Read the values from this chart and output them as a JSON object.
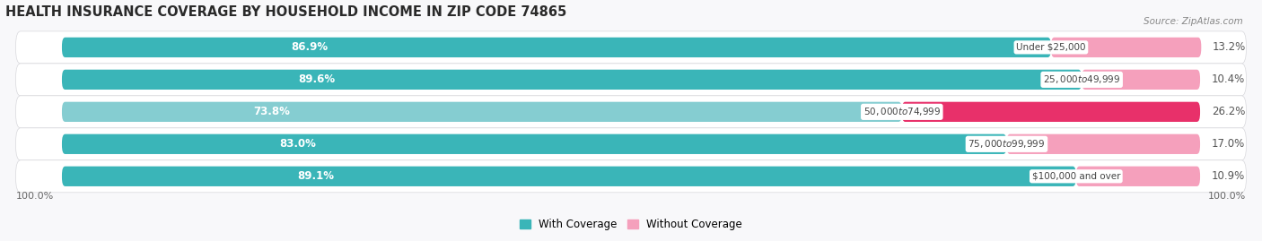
{
  "title": "HEALTH INSURANCE COVERAGE BY HOUSEHOLD INCOME IN ZIP CODE 74865",
  "source": "Source: ZipAtlas.com",
  "categories": [
    "Under $25,000",
    "$25,000 to $49,999",
    "$50,000 to $74,999",
    "$75,000 to $99,999",
    "$100,000 and over"
  ],
  "with_coverage": [
    86.9,
    89.6,
    73.8,
    83.0,
    89.1
  ],
  "without_coverage": [
    13.2,
    10.4,
    26.2,
    17.0,
    10.9
  ],
  "colors_coverage": [
    "#3ab5b8",
    "#3ab5b8",
    "#85cdd1",
    "#3ab5b8",
    "#3ab5b8"
  ],
  "colors_no_coverage": [
    "#f5a0bc",
    "#f5a0bc",
    "#e8306a",
    "#f5a0bc",
    "#f5a0bc"
  ],
  "color_row_odd": "#e8e8ec",
  "color_row_even": "#f0f0f4",
  "label_100_left": "100.0%",
  "label_100_right": "100.0%",
  "legend_coverage": "With Coverage",
  "legend_no_coverage": "Without Coverage",
  "color_legend_coverage": "#3ab5b8",
  "color_legend_no_coverage": "#f5a0bc",
  "title_fontsize": 10.5,
  "label_fontsize": 8.5,
  "figsize": [
    14.06,
    2.69
  ],
  "dpi": 100
}
